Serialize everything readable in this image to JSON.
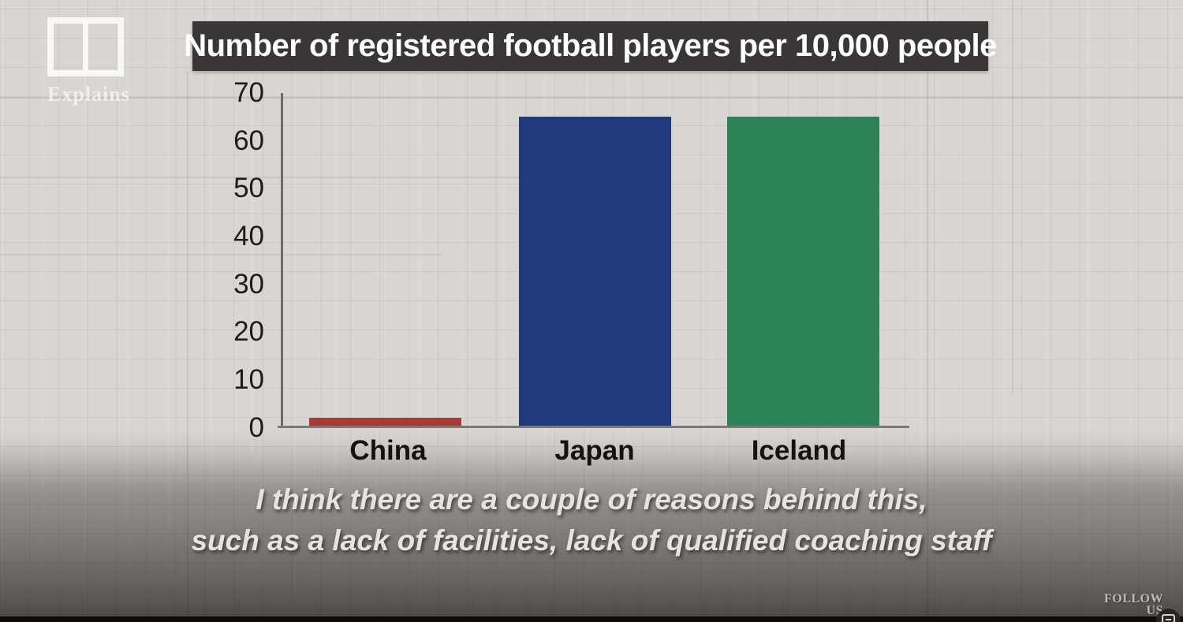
{
  "branding": {
    "logo_text": "Explains",
    "logo_icon": "two-pane-window-icon"
  },
  "header": {
    "title": "Number of registered football players per 10,000 people"
  },
  "chart_data": {
    "type": "bar",
    "title": "Number of registered football players per 10,000 people",
    "categories": [
      "China",
      "Japan",
      "Iceland"
    ],
    "values": [
      2,
      65,
      65
    ],
    "colors": [
      "#a43b36",
      "#21397d",
      "#2c8355"
    ],
    "xlabel": "",
    "ylabel": "",
    "ylim": [
      0,
      70
    ],
    "yticks": [
      0,
      10,
      20,
      30,
      40,
      50,
      60,
      70
    ],
    "grid": "faint graph-paper background grid",
    "legend": "none"
  },
  "subtitles": {
    "line1": "I think there are a couple of reasons behind this,",
    "line2": "such as a lack of facilities, lack of qualified coaching staff"
  },
  "footer": {
    "follow_line1": "FOLLOW",
    "follow_line2": "US",
    "icon": "scan-icon"
  }
}
